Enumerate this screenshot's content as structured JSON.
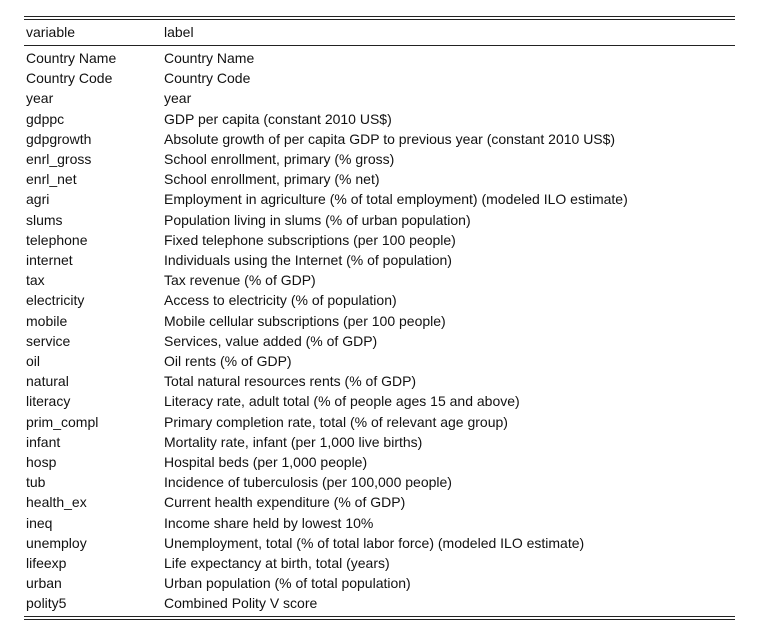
{
  "table": {
    "headers": [
      "variable",
      "label"
    ],
    "rows": [
      [
        "Country Name",
        "Country Name"
      ],
      [
        "Country Code",
        "Country Code"
      ],
      [
        "year",
        "year"
      ],
      [
        "gdppc",
        "GDP per capita (constant 2010 US$)"
      ],
      [
        "gdpgrowth",
        "Absolute growth of per capita GDP to previous year (constant 2010 US$)"
      ],
      [
        "enrl_gross",
        "School enrollment, primary (% gross)"
      ],
      [
        "enrl_net",
        "School enrollment, primary (% net)"
      ],
      [
        "agri",
        "Employment in agriculture (% of total employment) (modeled ILO estimate)"
      ],
      [
        "slums",
        "Population living in slums (% of urban population)"
      ],
      [
        "telephone",
        "Fixed telephone subscriptions (per 100 people)"
      ],
      [
        "internet",
        "Individuals using the Internet (% of population)"
      ],
      [
        "tax",
        "Tax revenue (% of GDP)"
      ],
      [
        "electricity",
        "Access to electricity (% of population)"
      ],
      [
        "mobile",
        "Mobile cellular subscriptions (per 100 people)"
      ],
      [
        "service",
        "Services, value added (% of GDP)"
      ],
      [
        "oil",
        "Oil rents (% of GDP)"
      ],
      [
        "natural",
        "Total natural resources rents (% of GDP)"
      ],
      [
        "literacy",
        "Literacy rate, adult total (% of people ages 15 and above)"
      ],
      [
        "prim_compl",
        "Primary completion rate, total (% of relevant age group)"
      ],
      [
        "infant",
        "Mortality rate, infant (per 1,000 live births)"
      ],
      [
        "hosp",
        "Hospital beds (per 1,000 people)"
      ],
      [
        "tub",
        "Incidence of tuberculosis (per 100,000 people)"
      ],
      [
        "health_ex",
        "Current health expenditure (% of GDP)"
      ],
      [
        "ineq",
        "Income share held by lowest 10%"
      ],
      [
        "unemploy",
        "Unemployment, total (% of total labor force) (modeled ILO estimate)"
      ],
      [
        "lifeexp",
        "Life expectancy at birth, total (years)"
      ],
      [
        "urban",
        "Urban population (% of total population)"
      ],
      [
        "polity5",
        "Combined Polity V score"
      ]
    ]
  }
}
